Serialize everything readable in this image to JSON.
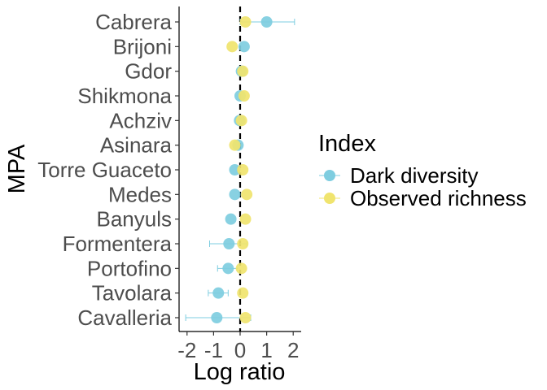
{
  "chart_data": {
    "type": "scatter",
    "orientation": "horizontal",
    "xlabel": "Log ratio",
    "ylabel": "MPA",
    "xlim": [
      -2.3,
      2.3
    ],
    "x_ticks": [
      -2,
      -1,
      0,
      1,
      2
    ],
    "x_tick_labels": [
      "-2",
      "-1",
      "0",
      "1",
      "2"
    ],
    "reference_line": 0,
    "grid": false,
    "legend_position": "right",
    "categories": [
      "Cabrera",
      "Brijoni",
      "Gdor",
      "Shikmona",
      "Achziv",
      "Asinara",
      "Torre Guaceto",
      "Medes",
      "Banyuls",
      "Formentera",
      "Portofino",
      "Tavolara",
      "Cavalleria"
    ],
    "legend": {
      "title": "Index"
    },
    "series": [
      {
        "name": "Dark diversity",
        "color": "#7ecde0",
        "values": [
          1.0,
          0.15,
          0.05,
          0.0,
          -0.02,
          -0.08,
          -0.2,
          -0.2,
          -0.35,
          -0.42,
          -0.45,
          -0.82,
          -0.88
        ],
        "error_low": [
          0.0,
          0.15,
          0.05,
          0.0,
          -0.02,
          -0.08,
          -0.2,
          -0.2,
          -0.35,
          -1.15,
          -0.85,
          -1.2,
          -2.05
        ],
        "error_high": [
          2.05,
          0.15,
          0.05,
          0.0,
          -0.02,
          -0.08,
          -0.2,
          -0.2,
          -0.35,
          0.25,
          -0.1,
          -0.45,
          0.4
        ]
      },
      {
        "name": "Observed richness",
        "color": "#f0e46e",
        "values": [
          0.2,
          -0.3,
          0.1,
          0.15,
          0.05,
          -0.2,
          0.1,
          0.25,
          0.2,
          0.1,
          0.05,
          0.1,
          0.2
        ]
      }
    ]
  }
}
